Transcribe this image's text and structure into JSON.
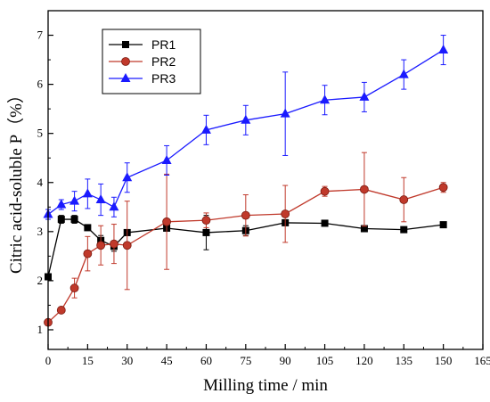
{
  "chart_data": {
    "type": "line",
    "xlabel": "Milling time / min",
    "ylabel": "Citric  acid-soluble P（%）",
    "xlim": [
      0,
      165
    ],
    "ylim": [
      0.6,
      7.5
    ],
    "xticks": [
      0,
      15,
      30,
      45,
      60,
      75,
      90,
      105,
      120,
      135,
      150,
      165
    ],
    "yticks": [
      1,
      2,
      3,
      4,
      5,
      6,
      7
    ],
    "grid": false,
    "legend_position": "top-left",
    "series": [
      {
        "name": "PR1",
        "color": "#000000",
        "marker": "square",
        "x": [
          0,
          5,
          10,
          15,
          20,
          25,
          30,
          45,
          60,
          75,
          90,
          105,
          120,
          135,
          150
        ],
        "y": [
          2.08,
          3.25,
          3.25,
          3.08,
          2.82,
          2.7,
          2.98,
          3.07,
          2.98,
          3.02,
          3.18,
          3.17,
          3.06,
          3.04,
          3.14
        ],
        "err": [
          0.05,
          0.08,
          0.08,
          0.05,
          0.1,
          0.1,
          0.06,
          0.05,
          0.35,
          0.1,
          0.05,
          0.05,
          0.05,
          0.05,
          0.05
        ]
      },
      {
        "name": "PR2",
        "color": "#c0392b",
        "marker": "circle",
        "x": [
          0,
          5,
          10,
          15,
          20,
          25,
          30,
          45,
          60,
          75,
          90,
          105,
          120,
          135,
          150
        ],
        "y": [
          1.15,
          1.4,
          1.85,
          2.55,
          2.72,
          2.75,
          2.72,
          3.2,
          3.23,
          3.33,
          3.36,
          3.82,
          3.86,
          3.65,
          3.9
        ],
        "err": [
          0.05,
          0.05,
          0.2,
          0.35,
          0.4,
          0.4,
          0.9,
          0.97,
          0.15,
          0.42,
          0.58,
          0.1,
          0.75,
          0.45,
          0.1
        ]
      },
      {
        "name": "PR3",
        "color": "#1a1aff",
        "marker": "triangle",
        "x": [
          0,
          5,
          10,
          15,
          20,
          25,
          30,
          45,
          60,
          75,
          90,
          105,
          120,
          135,
          150
        ],
        "y": [
          3.35,
          3.55,
          3.62,
          3.77,
          3.65,
          3.5,
          4.1,
          4.45,
          5.07,
          5.27,
          5.4,
          5.68,
          5.74,
          6.2,
          6.7
        ],
        "err": [
          0.1,
          0.1,
          0.2,
          0.3,
          0.32,
          0.2,
          0.3,
          0.3,
          0.3,
          0.3,
          0.85,
          0.3,
          0.3,
          0.3,
          0.3
        ]
      }
    ]
  }
}
